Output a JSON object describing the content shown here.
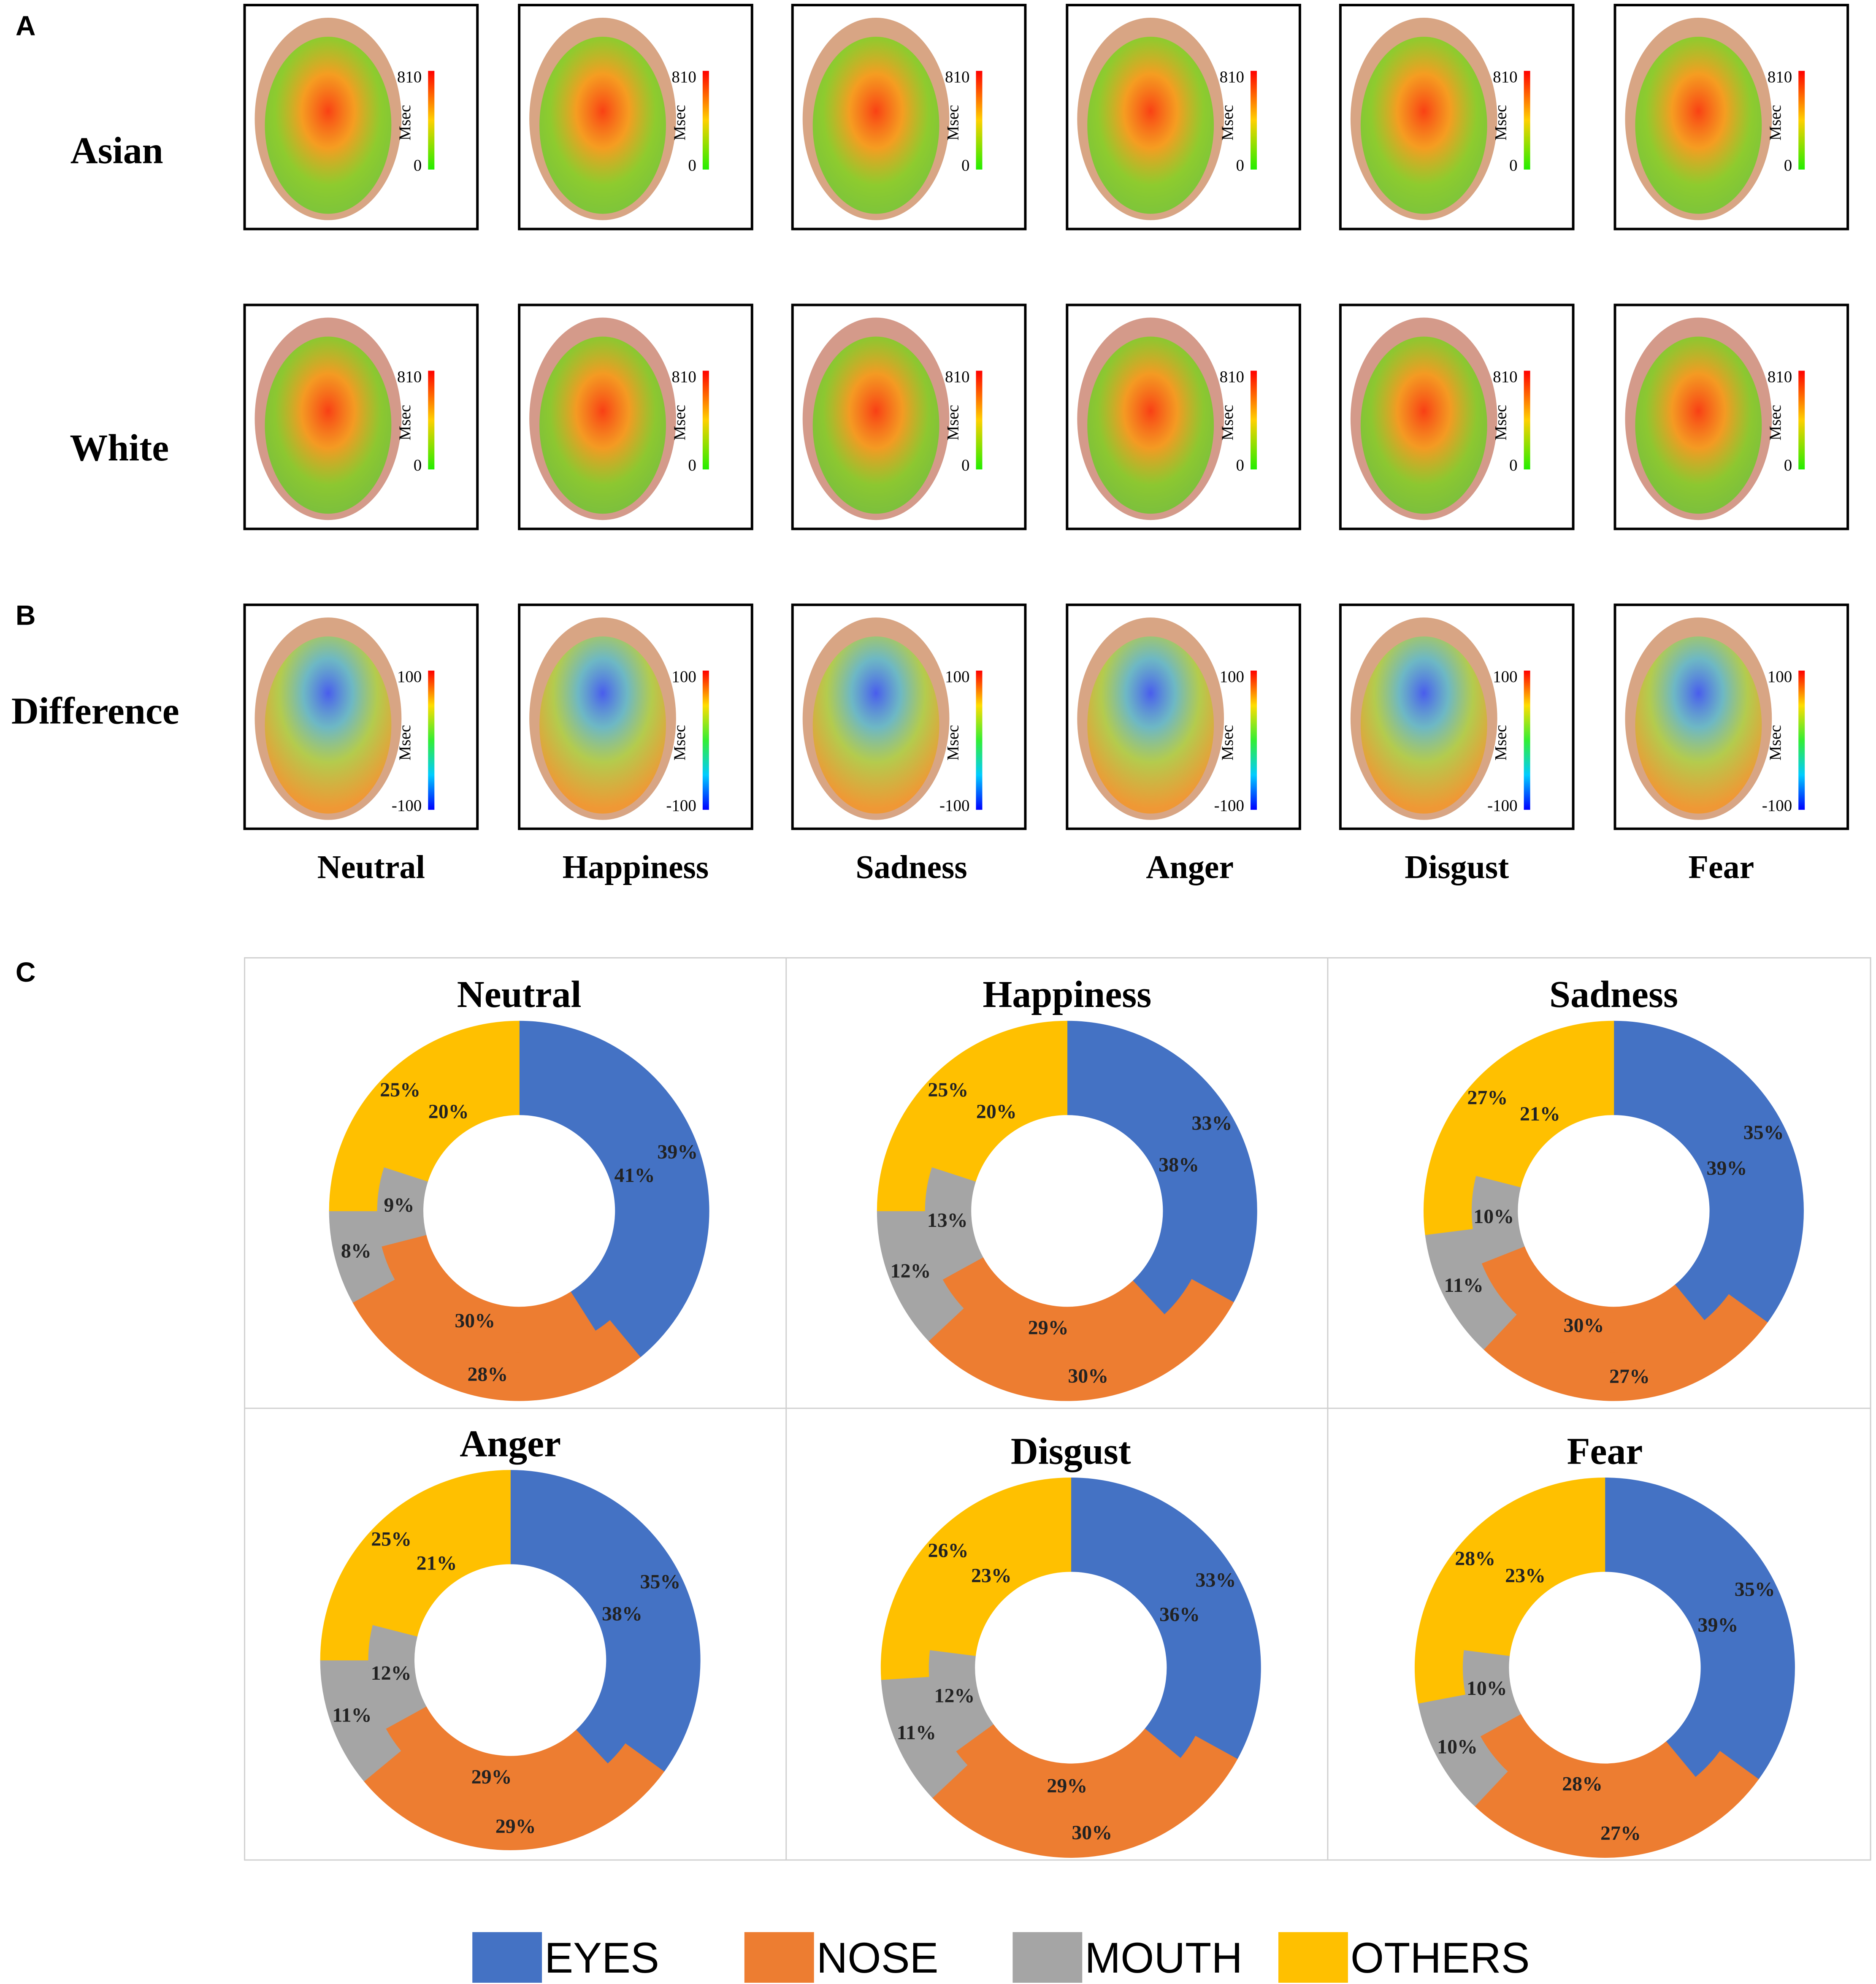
{
  "panel_labels": [
    "A",
    "B",
    "C"
  ],
  "heatmaps": {
    "rows": [
      "Asian",
      "White",
      "Difference"
    ],
    "columns": [
      "Neutral",
      "Happiness",
      "Sadness",
      "Anger",
      "Disgust",
      "Fear"
    ],
    "scale_duration": {
      "unit": "Msec",
      "max": 810,
      "min": 0
    },
    "scale_difference": {
      "unit": "Msec",
      "max": 100,
      "min": -100
    }
  },
  "chart_data": [
    {
      "type": "pie",
      "title": "Neutral",
      "categories": [
        "EYES",
        "NOSE",
        "MOUTH",
        "OTHERS"
      ],
      "colors": [
        "#4472c4",
        "#ed7d31",
        "#a5a5a5",
        "#ffc000"
      ],
      "series": [
        {
          "values": [
            39,
            28,
            8,
            25
          ],
          "value_labels": [
            "39%",
            "28%",
            "8%",
            "25%"
          ]
        },
        {
          "values": [
            41,
            30,
            9,
            20
          ],
          "value_labels": [
            "41%",
            "30%",
            "9%",
            "20%"
          ]
        }
      ]
    },
    {
      "type": "pie",
      "title": "Happiness",
      "categories": [
        "EYES",
        "NOSE",
        "MOUTH",
        "OTHERS"
      ],
      "colors": [
        "#4472c4",
        "#ed7d31",
        "#a5a5a5",
        "#ffc000"
      ],
      "series": [
        {
          "values": [
            33,
            30,
            12,
            25
          ],
          "value_labels": [
            "33%",
            "30%",
            "12%",
            "25%"
          ]
        },
        {
          "values": [
            38,
            29,
            13,
            20
          ],
          "value_labels": [
            "38%",
            "29%",
            "13%",
            "20%"
          ]
        }
      ]
    },
    {
      "type": "pie",
      "title": "Sadness",
      "categories": [
        "EYES",
        "NOSE",
        "MOUTH",
        "OTHERS"
      ],
      "colors": [
        "#4472c4",
        "#ed7d31",
        "#a5a5a5",
        "#ffc000"
      ],
      "series": [
        {
          "values": [
            35,
            27,
            11,
            27
          ],
          "value_labels": [
            "35%",
            "27%",
            "11%",
            "27%"
          ]
        },
        {
          "values": [
            39,
            30,
            10,
            21
          ],
          "value_labels": [
            "39%",
            "30%",
            "10%",
            "21%"
          ]
        }
      ]
    },
    {
      "type": "pie",
      "title": "Anger",
      "categories": [
        "EYES",
        "NOSE",
        "MOUTH",
        "OTHERS"
      ],
      "colors": [
        "#4472c4",
        "#ed7d31",
        "#a5a5a5",
        "#ffc000"
      ],
      "series": [
        {
          "values": [
            35,
            29,
            11,
            25
          ],
          "value_labels": [
            "35%",
            "29%",
            "11%",
            "25%"
          ]
        },
        {
          "values": [
            38,
            29,
            12,
            21
          ],
          "value_labels": [
            "38%",
            "29%",
            "12%",
            "21%"
          ]
        }
      ]
    },
    {
      "type": "pie",
      "title": "Disgust",
      "categories": [
        "EYES",
        "NOSE",
        "MOUTH",
        "OTHERS"
      ],
      "colors": [
        "#4472c4",
        "#ed7d31",
        "#a5a5a5",
        "#ffc000"
      ],
      "series": [
        {
          "values": [
            33,
            30,
            11,
            26
          ],
          "value_labels": [
            "33%",
            "30%",
            "11%",
            "26%"
          ]
        },
        {
          "values": [
            36,
            29,
            12,
            23
          ],
          "value_labels": [
            "36%",
            "29%",
            "12%",
            "23%"
          ]
        }
      ]
    },
    {
      "type": "pie",
      "title": "Fear",
      "categories": [
        "EYES",
        "NOSE",
        "MOUTH",
        "OTHERS"
      ],
      "colors": [
        "#4472c4",
        "#ed7d31",
        "#a5a5a5",
        "#ffc000"
      ],
      "series": [
        {
          "values": [
            35,
            27,
            10,
            28
          ],
          "value_labels": [
            "35%",
            "27%",
            "10%",
            "28%"
          ]
        },
        {
          "values": [
            39,
            28,
            10,
            23
          ],
          "value_labels": [
            "39%",
            "28%",
            "10%",
            "23%"
          ]
        }
      ]
    }
  ]
}
